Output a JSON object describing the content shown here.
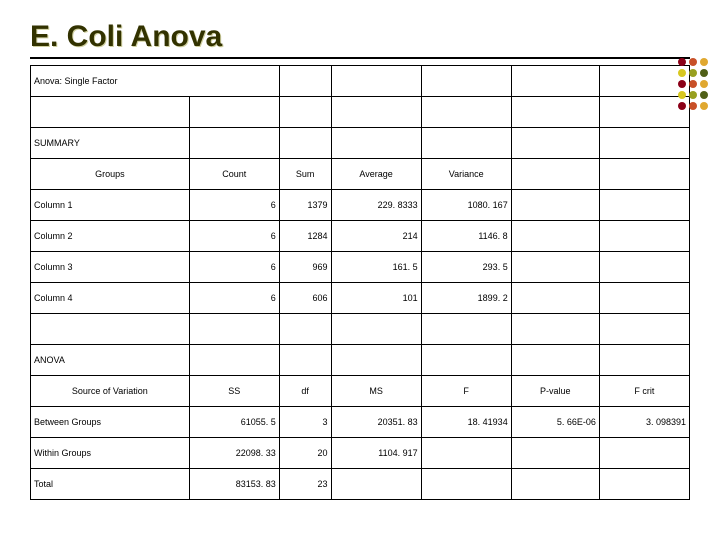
{
  "title": "E. Coli Anova",
  "subtitle": "Anova: Single Factor",
  "summary": {
    "heading": "SUMMARY",
    "headers": [
      "Groups",
      "Count",
      "Sum",
      "Average",
      "Variance"
    ],
    "rows": [
      {
        "label": "Column 1",
        "count": "6",
        "sum": "1379",
        "average": "229. 8333",
        "variance": "1080. 167"
      },
      {
        "label": "Column 2",
        "count": "6",
        "sum": "1284",
        "average": "214",
        "variance": "1146. 8"
      },
      {
        "label": "Column 3",
        "count": "6",
        "sum": "969",
        "average": "161. 5",
        "variance": "293. 5"
      },
      {
        "label": "Column 4",
        "count": "6",
        "sum": "606",
        "average": "101",
        "variance": "1899. 2"
      }
    ]
  },
  "anova": {
    "heading": "ANOVA",
    "headers": [
      "Source of Variation",
      "SS",
      "df",
      "MS",
      "F",
      "P-value",
      "F crit"
    ],
    "rows": [
      {
        "label": "Between Groups",
        "ss": "61055. 5",
        "df": "3",
        "ms": "20351. 83",
        "f": "18. 41934",
        "pvalue": "5. 66E-06",
        "fcrit": "3. 098391"
      },
      {
        "label": "Within Groups",
        "ss": "22098. 33",
        "df": "20",
        "ms": "1104. 917",
        "f": "",
        "pvalue": "",
        "fcrit": ""
      },
      {
        "label": "Total",
        "ss": "83153. 83",
        "df": "23",
        "ms": "",
        "f": "",
        "pvalue": "",
        "fcrit": ""
      }
    ]
  },
  "dot_colors": [
    "#8b0018",
    "#c85028",
    "#e0a830",
    "#d8c820",
    "#98a020",
    "#506018",
    "#8b0018",
    "#c85028",
    "#e0a830",
    "#d8c820",
    "#98a020",
    "#506018",
    "#8b0018",
    "#c85028",
    "#e0a830"
  ],
  "colors": {
    "title_color": "#323200",
    "border_color": "#000000",
    "background": "#ffffff"
  },
  "fonts": {
    "title_size": 30,
    "body_size": 9
  }
}
